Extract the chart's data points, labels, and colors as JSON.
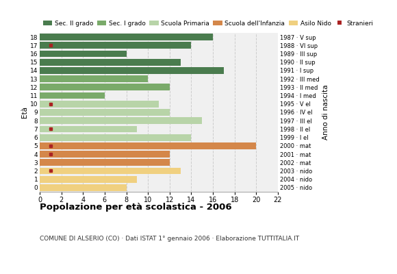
{
  "title": "Popolazione per età scolastica - 2006",
  "subtitle": "COMUNE DI ALSERIO (CO) · Dati ISTAT 1° gennaio 2006 · Elaborazione TUTTITALIA.IT",
  "ylabel_left": "Età",
  "ylabel_right": "Anno di nascita",
  "ages": [
    18,
    17,
    16,
    15,
    14,
    13,
    12,
    11,
    10,
    9,
    8,
    7,
    6,
    5,
    4,
    3,
    2,
    1,
    0
  ],
  "years": [
    "1987 · V sup",
    "1988 · VI sup",
    "1989 · III sup",
    "1990 · II sup",
    "1991 · I sup",
    "1992 · III med",
    "1993 · II med",
    "1994 · I med",
    "1995 · V el",
    "1996 · IV el",
    "1997 · III el",
    "1998 · II el",
    "1999 · I el",
    "2000 · mat",
    "2001 · mat",
    "2002 · mat",
    "2003 · nido",
    "2004 · nido",
    "2005 · nido"
  ],
  "bar_values": [
    16,
    14,
    8,
    13,
    17,
    10,
    12,
    6,
    11,
    12,
    15,
    9,
    14,
    20,
    12,
    12,
    13,
    9,
    8
  ],
  "bar_colors": [
    "#4a7c4e",
    "#4a7c4e",
    "#4a7c4e",
    "#4a7c4e",
    "#4a7c4e",
    "#7aaa6a",
    "#7aaa6a",
    "#7aaa6a",
    "#b8d4a8",
    "#b8d4a8",
    "#b8d4a8",
    "#b8d4a8",
    "#b8d4a8",
    "#d4874a",
    "#d4874a",
    "#d4874a",
    "#f0d080",
    "#f0d080",
    "#f0d080"
  ],
  "stranieri_values": [
    0,
    1,
    0,
    0,
    0,
    0,
    0,
    0,
    1,
    0,
    0,
    1,
    0,
    1,
    1,
    0,
    1,
    0,
    0
  ],
  "legend_categories": [
    "Sec. II grado",
    "Sec. I grado",
    "Scuola Primaria",
    "Scuola dell'Infanzia",
    "Asilo Nido",
    "Stranieri"
  ],
  "legend_colors": [
    "#4a7c4e",
    "#7aaa6a",
    "#b8d4a8",
    "#d4874a",
    "#f0d080",
    "#aa2222"
  ],
  "xlim": [
    0,
    22
  ],
  "xticks": [
    0,
    2,
    4,
    6,
    8,
    10,
    12,
    14,
    16,
    18,
    20,
    22
  ],
  "stranieri_color": "#aa2222",
  "bar_height": 0.8,
  "bg_color": "#f0f0f0",
  "grid_color": "#cccccc"
}
